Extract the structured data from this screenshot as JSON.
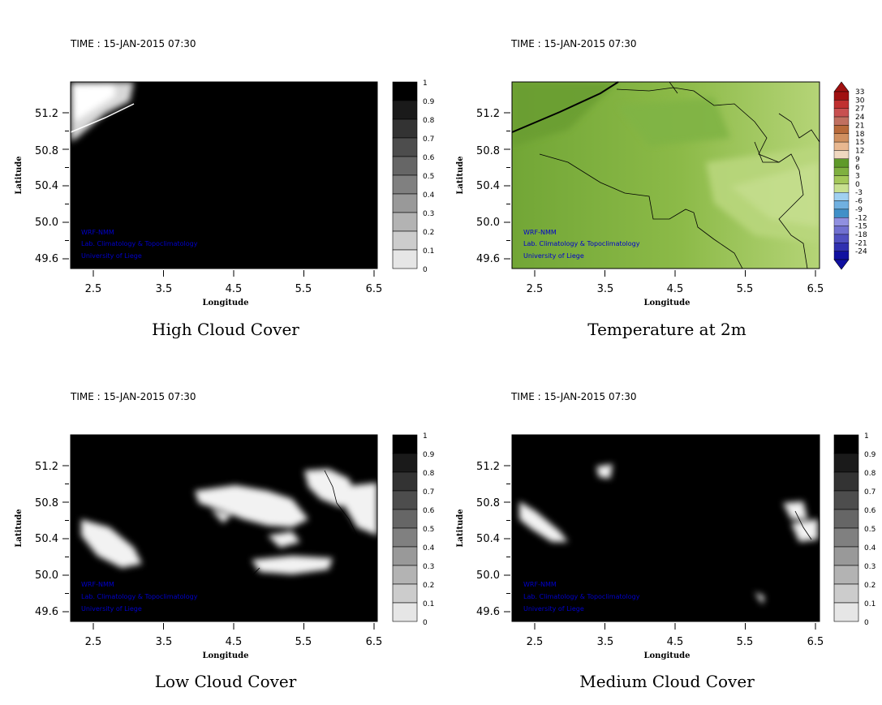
{
  "panels": [
    {
      "time_label": "TIME : 15-JAN-2015 07:30",
      "title": "High Cloud Cover",
      "xlabel": "Longitude",
      "ylabel": "Latitude",
      "x_ticks": [
        "2.5",
        "3.5",
        "4.5",
        "5.5",
        "6.5"
      ],
      "y_ticks": [
        "51.2",
        "50.8",
        "50.4",
        "50.0",
        "49.6"
      ],
      "credits": [
        "WRF-NMM",
        "Lab. Climatology & Topoclimatology",
        "University of Liege"
      ],
      "colorbar_labels": [
        "1",
        "0.9",
        "0.8",
        "0.7",
        "0.6",
        "0.5",
        "0.4",
        "0.3",
        "0.2",
        "0.1",
        "0"
      ]
    },
    {
      "time_label": "TIME : 15-JAN-2015 07:30",
      "title": "Temperature at 2m",
      "xlabel": "Longitude",
      "ylabel": "Latitude",
      "x_ticks": [
        "2.5",
        "3.5",
        "4.5",
        "5.5",
        "6.5"
      ],
      "y_ticks": [
        "51.2",
        "50.8",
        "50.4",
        "50.0",
        "49.6"
      ],
      "credits": [
        "WRF-NMM",
        "Lab. Climatology & Topoclimatology",
        "University of Liege"
      ],
      "colorbar_labels": [
        "33",
        "30",
        "27",
        "24",
        "21",
        "18",
        "15",
        "12",
        "9",
        "6",
        "3",
        "0",
        "-3",
        "-6",
        "-9",
        "-12",
        "-15",
        "-18",
        "-21",
        "-24"
      ]
    },
    {
      "time_label": "TIME : 15-JAN-2015 07:30",
      "title": "Low Cloud Cover",
      "xlabel": "Longitude",
      "ylabel": "Latitude",
      "x_ticks": [
        "2.5",
        "3.5",
        "4.5",
        "5.5",
        "6.5"
      ],
      "y_ticks": [
        "51.2",
        "50.8",
        "50.4",
        "50.0",
        "49.6"
      ],
      "credits": [
        "WRF-NMM",
        "Lab. Climatology & Topoclimatology",
        "University of Liege"
      ],
      "colorbar_labels": [
        "1",
        "0.9",
        "0.8",
        "0.7",
        "0.6",
        "0.5",
        "0.4",
        "0.3",
        "0.2",
        "0.1",
        "0"
      ]
    },
    {
      "time_label": "TIME : 15-JAN-2015 07:30",
      "title": "Medium Cloud Cover",
      "xlabel": "Longitude",
      "ylabel": "Latitude",
      "x_ticks": [
        "2.5",
        "3.5",
        "4.5",
        "5.5",
        "6.5"
      ],
      "y_ticks": [
        "51.2",
        "50.8",
        "50.4",
        "50.0",
        "49.6"
      ],
      "credits": [
        "WRF-NMM",
        "Lab. Climatology & Topoclimatology",
        "University of Liege"
      ],
      "colorbar_labels": [
        "1",
        "0.9",
        "0.8",
        "0.7",
        "0.6",
        "0.5",
        "0.4",
        "0.3",
        "0.2",
        "0.1",
        "0"
      ]
    }
  ],
  "colors": {
    "cloud_scale": [
      "#000000",
      "#1a1a1a",
      "#333333",
      "#4d4d4d",
      "#666666",
      "#808080",
      "#999999",
      "#b3b3b3",
      "#cccccc",
      "#e6e6e6",
      "#ffffff"
    ],
    "temperature_scale": [
      "#a01010",
      "#c03030",
      "#c85050",
      "#c07060",
      "#b86a3a",
      "#d09060",
      "#e8b890",
      "#f0d8c0",
      "#5f9a2a",
      "#7fb040",
      "#a4c85a",
      "#c8e090",
      "#a0d0f0",
      "#70b0e0",
      "#4090c8",
      "#9090e0",
      "#7070d0",
      "#5050c0",
      "#3030b0",
      "#1010a0"
    ],
    "temperature_field": "#7fb040",
    "credit_text": "#0000cc"
  }
}
